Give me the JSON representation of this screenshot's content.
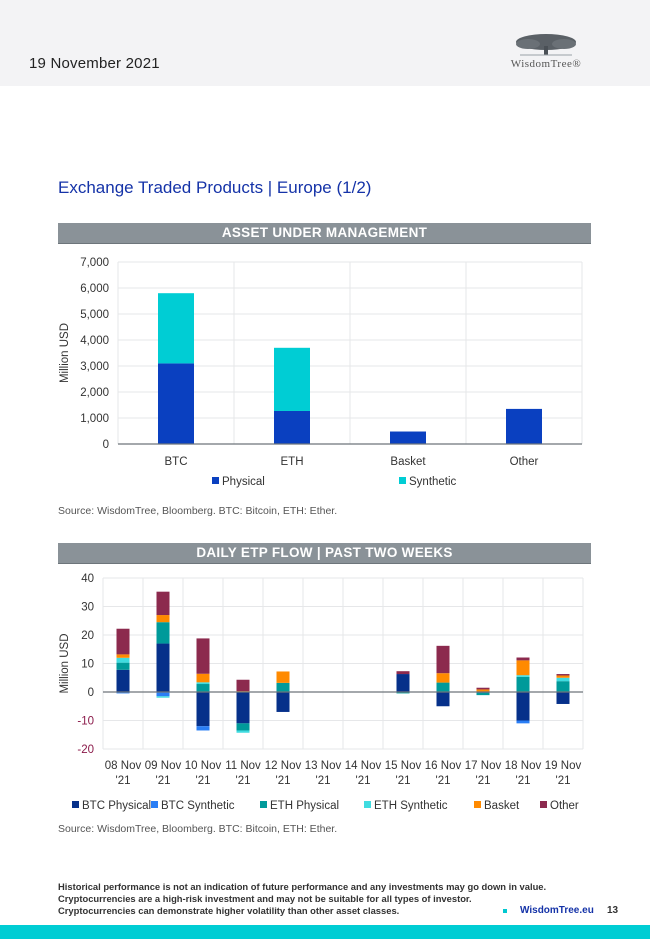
{
  "header": {
    "date": "19 November 2021",
    "logo_text": "WisdomTree®",
    "logo_icon": "tree-icon"
  },
  "page_title": "Exchange Traded Products | Europe (1/2)",
  "sections": {
    "aum_title": "ASSET UNDER MANAGEMENT",
    "flow_title": "DAILY ETP FLOW | PAST TWO WEEKS"
  },
  "sources": {
    "aum": "Source: WisdomTree, Bloomberg. BTC: Bitcoin, ETH: Ether.",
    "flow": "Source: WisdomTree, Bloomberg. BTC: Bitcoin, ETH: Ether."
  },
  "footer": {
    "disclaimer_1": "Historical performance is not an indication of future performance and any investments may go down in value.",
    "disclaimer_2": "Cryptocurrencies are a high-risk investment and may not be suitable for all types of investor.",
    "disclaimer_3": "Cryptocurrencies can demonstrate higher volatility than other asset classes.",
    "link": "WisdomTree.eu",
    "page_number": "13"
  },
  "chart_data": [
    {
      "type": "bar",
      "stacked": true,
      "title": "ASSET UNDER MANAGEMENT",
      "xlabel": "",
      "ylabel": "Million USD",
      "ylim": [
        0,
        7000
      ],
      "yticks": [
        0,
        1000,
        2000,
        3000,
        4000,
        5000,
        6000,
        7000
      ],
      "ytick_labels": [
        "0",
        "1,000",
        "2,000",
        "3,000",
        "4,000",
        "5,000",
        "6,000",
        "7,000"
      ],
      "grid": true,
      "legend_position": "bottom",
      "categories": [
        "BTC",
        "ETH",
        "Basket",
        "Other"
      ],
      "series": [
        {
          "name": "Physical",
          "color": "#0a40c0",
          "values": [
            3100,
            1270,
            480,
            1350
          ]
        },
        {
          "name": "Synthetic",
          "color": "#00cdd4",
          "values": [
            2700,
            2430,
            0,
            0
          ]
        }
      ]
    },
    {
      "type": "bar",
      "stacked": true,
      "title": "DAILY ETP FLOW | PAST TWO WEEKS",
      "xlabel": "",
      "ylabel": "Million USD",
      "ylim": [
        -20,
        40
      ],
      "yticks": [
        -20,
        -10,
        0,
        10,
        20,
        30,
        40
      ],
      "ytick_labels": [
        "-20",
        "-10",
        "0",
        "10",
        "20",
        "30",
        "40"
      ],
      "negative_tick_color": "#8b1a4a",
      "grid": true,
      "legend_position": "bottom",
      "categories": [
        "08 Nov '21",
        "09 Nov '21",
        "10 Nov '21",
        "11 Nov '21",
        "12 Nov '21",
        "13 Nov '21",
        "14 Nov '21",
        "15 Nov '21",
        "16 Nov '21",
        "17 Nov '21",
        "18 Nov '21",
        "19 Nov '21"
      ],
      "category_lines": [
        [
          "08 Nov",
          "'21"
        ],
        [
          "09 Nov",
          "'21"
        ],
        [
          "10 Nov",
          "'21"
        ],
        [
          "11 Nov",
          "'21"
        ],
        [
          "12 Nov",
          "'21"
        ],
        [
          "13 Nov",
          "'21"
        ],
        [
          "14 Nov",
          "'21"
        ],
        [
          "15 Nov",
          "'21"
        ],
        [
          "16 Nov",
          "'21"
        ],
        [
          "17 Nov",
          "'21"
        ],
        [
          "18 Nov",
          "'21"
        ],
        [
          "19 Nov",
          "'21"
        ]
      ],
      "series": [
        {
          "name": "BTC Physical",
          "color": "#06308a",
          "values": [
            7.8,
            17.0,
            -12.0,
            -11.0,
            -7.0,
            0,
            0,
            6.3,
            -5.0,
            -0.3,
            -10.0,
            -4.2
          ]
        },
        {
          "name": "BTC Synthetic",
          "color": "#2a7ef5",
          "values": [
            -0.5,
            -1.5,
            -1.5,
            0,
            0,
            0,
            0,
            0,
            0,
            0,
            -1.0,
            0
          ]
        },
        {
          "name": "ETH Physical",
          "color": "#009a9a",
          "values": [
            2.5,
            7.5,
            2.8,
            -2.5,
            3.2,
            0,
            0,
            -0.5,
            3.3,
            -0.8,
            5.3,
            3.8
          ]
        },
        {
          "name": "ETH Synthetic",
          "color": "#40dce0",
          "values": [
            1.7,
            -0.5,
            0.6,
            -0.8,
            0,
            0,
            0,
            0,
            0,
            0,
            0.6,
            1.2
          ]
        },
        {
          "name": "Basket",
          "color": "#ff8a00",
          "values": [
            1.2,
            2.5,
            3.0,
            0.3,
            4.0,
            0,
            0,
            0,
            3.3,
            0.9,
            5.2,
            0.8
          ]
        },
        {
          "name": "Other",
          "color": "#8c2a4e",
          "values": [
            9.0,
            8.2,
            12.4,
            4.0,
            0,
            0,
            0,
            1.0,
            9.6,
            0.6,
            1.0,
            0.5
          ]
        }
      ]
    }
  ]
}
